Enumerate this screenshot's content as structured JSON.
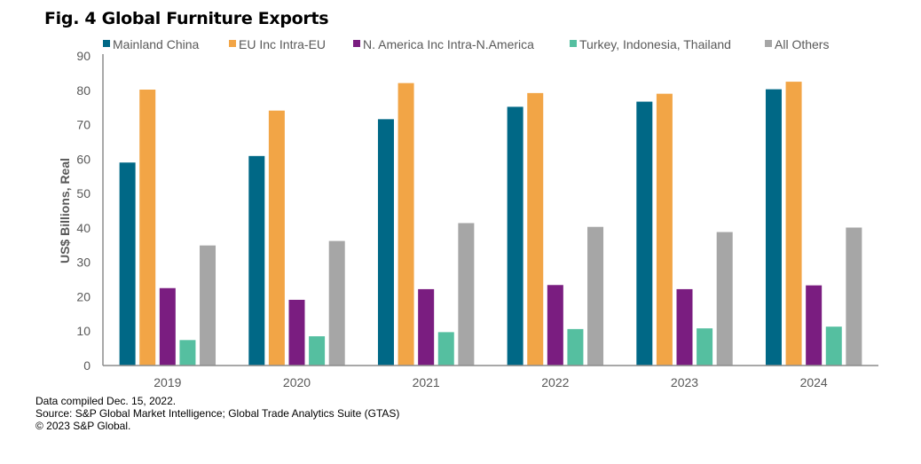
{
  "title": "Fig. 4 Global Furniture Exports",
  "footer": [
    "Data compiled Dec. 15, 2022.",
    "Source: S&P Global Market Intelligence; Global Trade Analytics Suite (GTAS)",
    "© 2023 S&P Global."
  ],
  "chart_data": {
    "type": "bar",
    "title": "Fig. 4 Global Furniture Exports",
    "xlabel": "",
    "ylabel": "US$ Billions, Real",
    "ylim": [
      0,
      90
    ],
    "yticks": [
      0,
      10,
      20,
      30,
      40,
      50,
      60,
      70,
      80,
      90
    ],
    "grid": false,
    "legend_position": "top",
    "categories": [
      "2019",
      "2020",
      "2021",
      "2022",
      "2023",
      "2024"
    ],
    "series": [
      {
        "name": "Mainland China",
        "color": "#006886",
        "values": [
          59.0,
          60.9,
          71.6,
          75.2,
          76.7,
          80.3
        ]
      },
      {
        "name": "EU Inc Intra-EU",
        "color": "#F2A546",
        "values": [
          80.2,
          74.1,
          82.1,
          79.2,
          79.0,
          82.5
        ]
      },
      {
        "name": "N. America Inc Intra-N.America",
        "color": "#7A1D80",
        "values": [
          22.5,
          19.1,
          22.2,
          23.4,
          22.2,
          23.3
        ]
      },
      {
        "name": "Turkey, Indonesia, Thailand",
        "color": "#55BFA0",
        "values": [
          7.4,
          8.5,
          9.7,
          10.6,
          10.8,
          11.3
        ]
      },
      {
        "name": "All Others",
        "color": "#A6A6A6",
        "values": [
          34.9,
          36.2,
          41.4,
          40.3,
          38.8,
          40.1
        ]
      }
    ]
  }
}
